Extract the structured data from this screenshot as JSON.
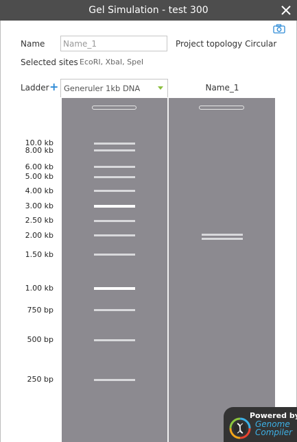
{
  "dialog": {
    "title": "Gel Simulation - test 300"
  },
  "form": {
    "name_label": "Name",
    "name_placeholder": "Name_1",
    "topology_label": "Project topology Circular",
    "sites_label": "Selected sites",
    "sites_value": "EcoRI, XbaI, SpeI",
    "ladder_label": "Ladder",
    "ladder_value": "Generuler 1kb DNA"
  },
  "gel": {
    "sample_lane_header": "Name_1",
    "ladder_bands": [
      {
        "label": "10.0 kb",
        "bp": 10000,
        "bright": false
      },
      {
        "label": "8.00 kb",
        "bp": 8000,
        "bright": false
      },
      {
        "label": "6.00 kb",
        "bp": 6000,
        "bright": false
      },
      {
        "label": "5.00 kb",
        "bp": 5000,
        "bright": false
      },
      {
        "label": "4.00 kb",
        "bp": 4000,
        "bright": false
      },
      {
        "label": "3.00 kb",
        "bp": 3000,
        "bright": true
      },
      {
        "label": "2.50 kb",
        "bp": 2500,
        "bright": false
      },
      {
        "label": "2.00 kb",
        "bp": 2000,
        "bright": false
      },
      {
        "label": "1.50 kb",
        "bp": 1500,
        "bright": false
      },
      {
        "label": "1.00 kb",
        "bp": 1000,
        "bright": true
      },
      {
        "label": "750 bp",
        "bp": 750,
        "bright": false
      },
      {
        "label": "500 bp",
        "bp": 500,
        "bright": false
      },
      {
        "label": "250 bp",
        "bp": 250,
        "bright": false
      }
    ]
  },
  "branding": {
    "powered_by": "Powered by",
    "name_line1": "Genome",
    "name_line2": "Compiler"
  },
  "colors": {
    "title_bar": "#4d4d4d",
    "gel": "#8c8a90",
    "band": "#d9d9dc",
    "band_bright": "#ffffff",
    "accent_blue": "#2e8bd6",
    "dropdown_arrow": "#8cbf3f"
  }
}
